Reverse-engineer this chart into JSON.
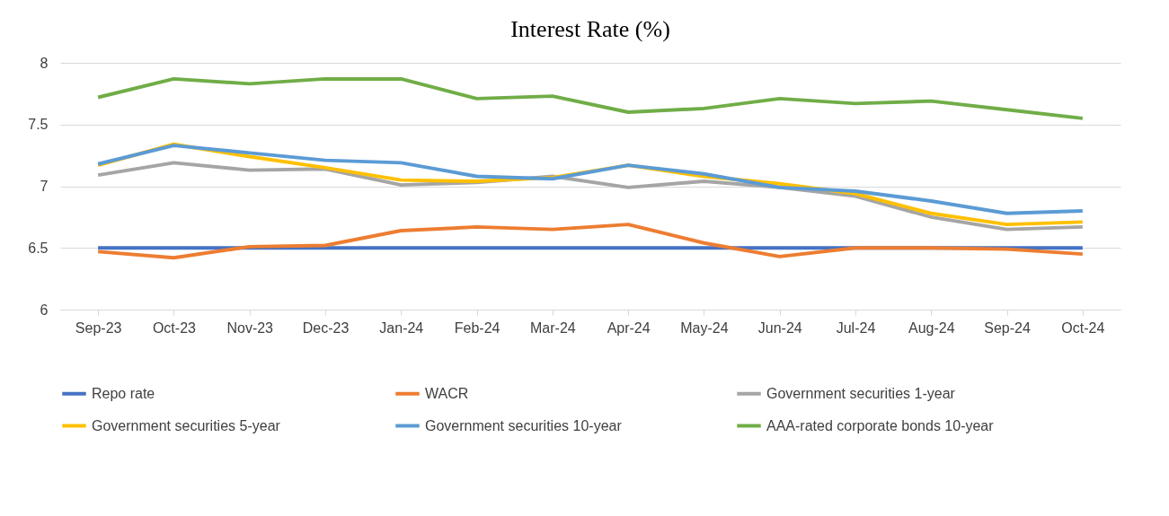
{
  "chart_data": {
    "type": "line",
    "title": "Interest Rate (%)",
    "categories": [
      "Sep-23",
      "Oct-23",
      "Nov-23",
      "Dec-23",
      "Jan-24",
      "Feb-24",
      "Mar-24",
      "Apr-24",
      "May-24",
      "Jun-24",
      "Jul-24",
      "Aug-24",
      "Sep-24",
      "Oct-24"
    ],
    "series": [
      {
        "name": "Repo rate",
        "color": "#4472c4",
        "values": [
          6.5,
          6.5,
          6.5,
          6.5,
          6.5,
          6.5,
          6.5,
          6.5,
          6.5,
          6.5,
          6.5,
          6.5,
          6.5,
          6.5
        ]
      },
      {
        "name": "WACR",
        "color": "#ed7d31",
        "values": [
          6.47,
          6.42,
          6.51,
          6.52,
          6.64,
          6.67,
          6.65,
          6.69,
          6.54,
          6.43,
          6.5,
          6.5,
          6.49,
          6.45
        ]
      },
      {
        "name": "Government securities 1-year",
        "color": "#a5a5a5",
        "values": [
          7.09,
          7.19,
          7.13,
          7.14,
          7.01,
          7.03,
          7.08,
          6.99,
          7.04,
          6.99,
          6.92,
          6.75,
          6.65,
          6.67
        ]
      },
      {
        "name": "Government securities 5-year",
        "color": "#ffc000",
        "values": [
          7.17,
          7.34,
          7.24,
          7.15,
          7.05,
          7.04,
          7.07,
          7.17,
          7.08,
          7.02,
          6.94,
          6.78,
          6.69,
          6.71
        ]
      },
      {
        "name": "Government securities 10-year",
        "color": "#5b9bd5",
        "values": [
          7.18,
          7.33,
          7.27,
          7.21,
          7.19,
          7.08,
          7.06,
          7.17,
          7.1,
          6.99,
          6.96,
          6.88,
          6.78,
          6.8
        ]
      },
      {
        "name": "AAA-rated corporate bonds 10-year",
        "color": "#70ad47",
        "values": [
          7.72,
          7.87,
          7.83,
          7.87,
          7.87,
          7.71,
          7.73,
          7.6,
          7.63,
          7.71,
          7.67,
          7.69,
          7.62,
          7.55
        ]
      }
    ],
    "ylim": [
      6,
      8
    ],
    "yticks": [
      6,
      6.5,
      7,
      7.5,
      8
    ],
    "grid": "y",
    "legend": "bottom",
    "marker": "none",
    "line_style": "solid"
  }
}
